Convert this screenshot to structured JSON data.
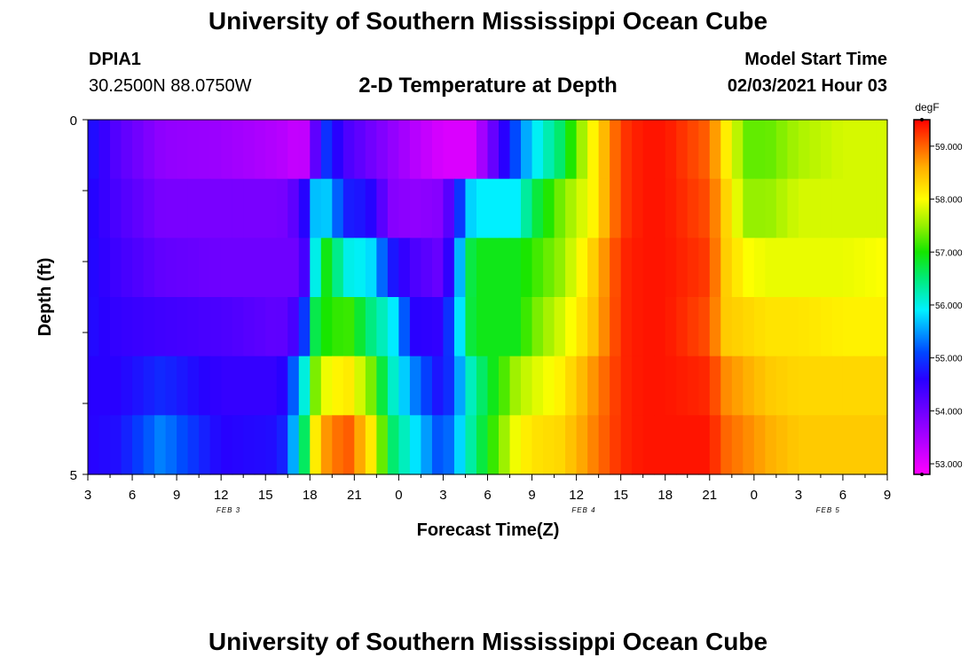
{
  "header": {
    "title": "University of Southern Mississippi Ocean Cube",
    "station_id": "DPIA1",
    "station_coords": "30.2500N 88.0750W",
    "model_start_label": "Model Start Time",
    "model_start_value": "02/03/2021 Hour 03"
  },
  "footer": {
    "title": "University of Southern Mississippi Ocean Cube"
  },
  "chart_data": {
    "type": "heatmap",
    "title": "2-D Temperature at Depth",
    "xlabel": "Forecast Time(Z)",
    "ylabel": "Depth (ft)",
    "x_tick_labels": [
      "3",
      "6",
      "9",
      "12",
      "15",
      "18",
      "21",
      "0",
      "3",
      "6",
      "9",
      "12",
      "15",
      "18",
      "21",
      "0",
      "3",
      "6",
      "9"
    ],
    "x_range_hours": [
      0,
      54
    ],
    "date_labels": [
      {
        "label": "FEB 3",
        "hour": 9.5
      },
      {
        "label": "FEB 4",
        "hour": 33.5
      },
      {
        "label": "FEB 5",
        "hour": 50
      }
    ],
    "y_tick_labels": [
      {
        "label": "0",
        "depth": 0
      },
      {
        "label": "5",
        "depth": 5
      }
    ],
    "ylim": [
      0,
      5
    ],
    "colorbar": {
      "unit": "degF",
      "min": 52.8,
      "max": 59.5,
      "ticks": [
        "53.000",
        "54.000",
        "55.000",
        "56.000",
        "57.000",
        "58.000",
        "59.000"
      ],
      "tick_values": [
        53,
        54,
        55,
        56,
        57,
        58,
        59
      ]
    },
    "depth_levels": [
      0,
      1,
      2,
      3,
      4,
      5
    ],
    "x_keyframes": [
      0,
      2,
      5,
      9,
      13,
      14.5,
      15,
      16,
      17.5,
      19,
      20.5,
      22,
      24,
      26,
      29,
      30,
      32,
      34,
      36,
      37.5,
      39,
      42,
      43,
      44.5,
      46,
      48,
      51,
      54
    ],
    "rows": [
      [
        54.8,
        54.2,
        53.7,
        53.6,
        53.4,
        53.2,
        53.6,
        55.0,
        54.3,
        54.0,
        53.7,
        53.4,
        53.1,
        53.1,
        55.2,
        55.8,
        56.6,
        58.0,
        59.2,
        59.4,
        59.4,
        59.0,
        58.2,
        57.3,
        57.3,
        57.6,
        57.8,
        57.8
      ],
      [
        54.7,
        54.3,
        53.9,
        53.9,
        53.9,
        54.3,
        55.6,
        55.8,
        54.8,
        54.7,
        53.8,
        53.7,
        53.8,
        55.9,
        55.9,
        56.6,
        57.4,
        58.0,
        59.2,
        59.4,
        59.4,
        59.1,
        58.4,
        57.5,
        57.5,
        57.8,
        57.8,
        57.8
      ],
      [
        54.7,
        54.4,
        54.1,
        54.0,
        54.0,
        54.0,
        55.4,
        57.0,
        56.0,
        55.9,
        54.8,
        54.3,
        54.0,
        56.9,
        56.9,
        57.1,
        57.5,
        58.3,
        59.3,
        59.4,
        59.4,
        59.2,
        58.4,
        58.0,
        57.9,
        57.9,
        57.9,
        58.0
      ],
      [
        54.7,
        54.5,
        54.4,
        54.3,
        54.1,
        54.5,
        56.5,
        57.0,
        57.2,
        56.5,
        56.0,
        54.6,
        54.5,
        56.9,
        56.9,
        57.3,
        57.8,
        58.4,
        59.3,
        59.4,
        59.4,
        59.1,
        58.4,
        58.3,
        58.2,
        58.2,
        58.1,
        58.1
      ],
      [
        54.6,
        54.6,
        54.9,
        54.5,
        54.5,
        55.7,
        57.1,
        57.9,
        58.2,
        57.5,
        56.2,
        55.4,
        54.6,
        56.3,
        57.6,
        57.8,
        58.1,
        58.7,
        59.3,
        59.4,
        59.4,
        59.3,
        58.8,
        58.6,
        58.4,
        58.3,
        58.3,
        58.3
      ],
      [
        54.6,
        54.7,
        55.4,
        54.6,
        54.7,
        56.2,
        57.8,
        58.7,
        59.1,
        58.3,
        56.6,
        55.9,
        55.0,
        56.4,
        58.0,
        58.2,
        58.3,
        58.8,
        59.3,
        59.4,
        59.4,
        59.4,
        59.0,
        58.8,
        58.6,
        58.4,
        58.4,
        58.4
      ]
    ]
  }
}
